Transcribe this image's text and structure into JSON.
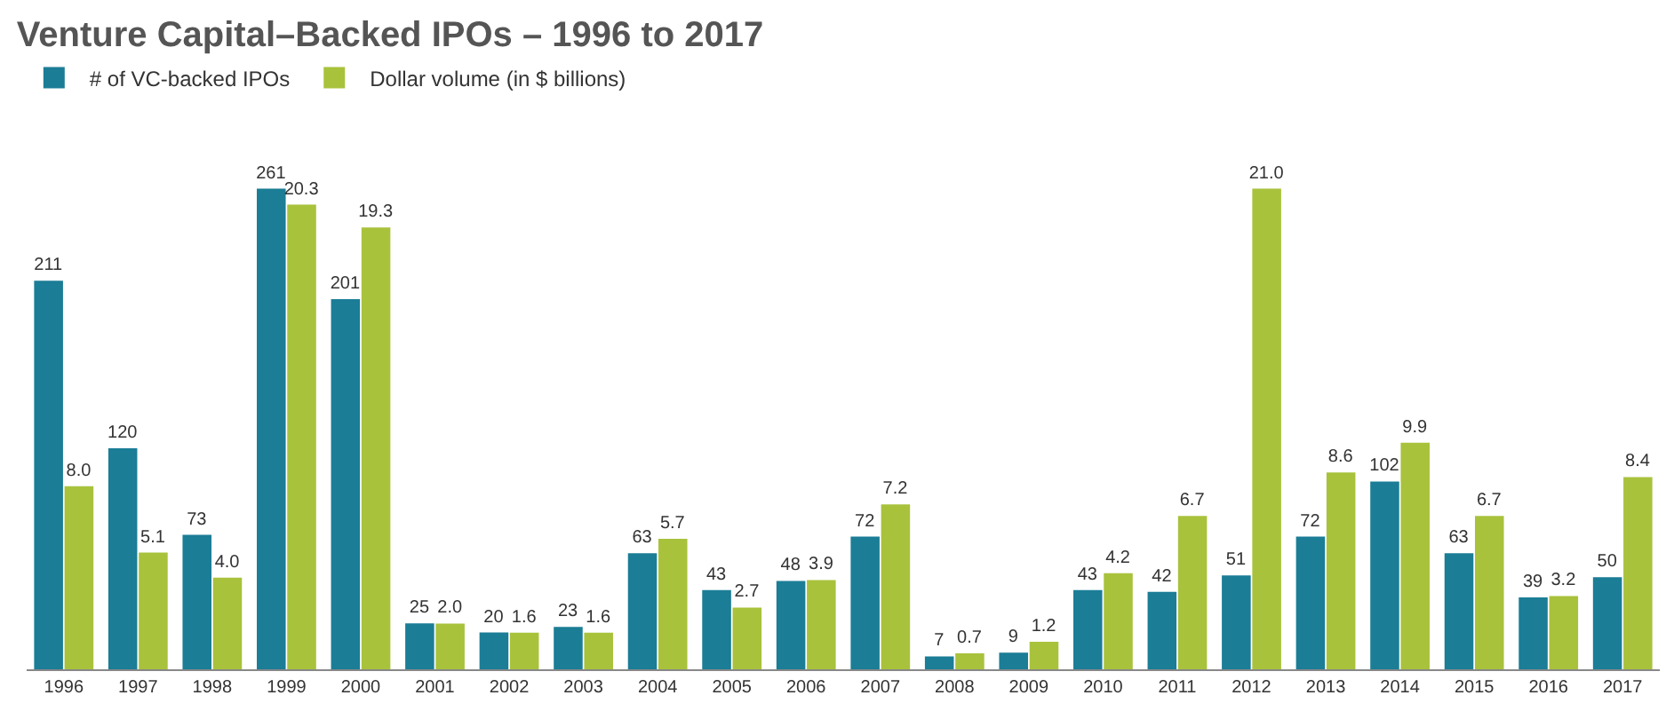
{
  "chart_data": {
    "type": "bar",
    "title": "Venture Capital–Backed IPOs – 1996 to 2017",
    "categories": [
      "1996",
      "1997",
      "1998",
      "1999",
      "2000",
      "2001",
      "2002",
      "2003",
      "2004",
      "2005",
      "2006",
      "2007",
      "2008",
      "2009",
      "2010",
      "2011",
      "2012",
      "2013",
      "2014",
      "2015",
      "2016",
      "2017"
    ],
    "series": [
      {
        "name": "# of VC-backed IPOs",
        "color": "#1b7d96",
        "values": [
          211,
          120,
          73,
          261,
          201,
          25,
          20,
          23,
          63,
          43,
          48,
          72,
          7,
          9,
          43,
          42,
          51,
          72,
          102,
          63,
          39,
          50
        ]
      },
      {
        "name": "Dollar volume (in $ billions)",
        "color": "#a8c23c",
        "axis": "y2",
        "values": [
          8.0,
          5.1,
          4.0,
          20.3,
          19.3,
          2.0,
          1.6,
          1.6,
          5.7,
          2.7,
          3.9,
          7.2,
          0.7,
          1.2,
          4.2,
          6.7,
          21.0,
          8.6,
          9.9,
          6.7,
          3.2,
          8.4
        ],
        "value_labels": [
          "8.0",
          "5.1",
          "4.0",
          "20.3",
          "19.3",
          "2.0",
          "1.6",
          "1.6",
          "5.7",
          "2.7",
          "3.9",
          "7.2",
          "0.7",
          "1.2",
          "4.2",
          "6.7",
          "21.0",
          "8.6",
          "9.9",
          "6.7",
          "3.2",
          "8.4"
        ]
      }
    ],
    "data_labels": true,
    "tick_labels": "x",
    "legend": "top left"
  }
}
